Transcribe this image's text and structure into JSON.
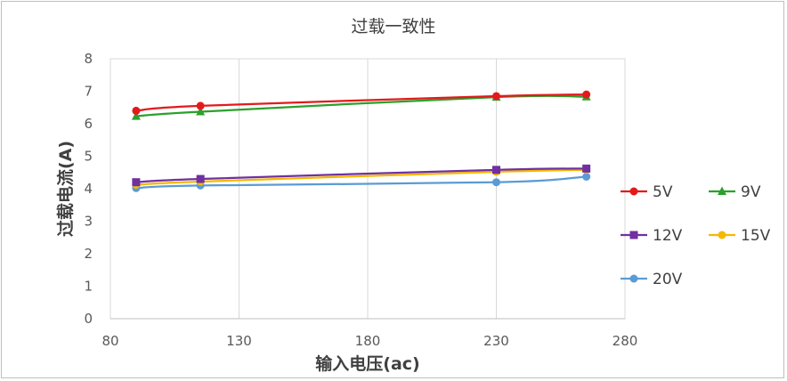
{
  "chart_data": {
    "type": "line",
    "title": "过载一致性",
    "xlabel": "输入电压(ac)",
    "ylabel": "过载电流(A)",
    "xlim": [
      80,
      280
    ],
    "ylim": [
      0,
      8
    ],
    "xticks": [
      80,
      130,
      180,
      230,
      280
    ],
    "yticks": [
      0,
      1,
      2,
      3,
      4,
      5,
      6,
      7,
      8
    ],
    "grid": "vertical",
    "legend_position": "right",
    "series": [
      {
        "name": "5V",
        "color": "#e31a1c",
        "marker": "circle",
        "x": [
          90,
          115,
          230,
          265
        ],
        "values": [
          6.4,
          6.55,
          6.85,
          6.9
        ]
      },
      {
        "name": "9V",
        "color": "#2ca02c",
        "marker": "triangle",
        "x": [
          90,
          115,
          230,
          265
        ],
        "values": [
          6.23,
          6.37,
          6.82,
          6.83
        ]
      },
      {
        "name": "12V",
        "color": "#7030a0",
        "marker": "square",
        "x": [
          90,
          115,
          230,
          265
        ],
        "values": [
          4.2,
          4.3,
          4.58,
          4.62
        ]
      },
      {
        "name": "15V",
        "color": "#f5b800",
        "marker": "circle",
        "x": [
          90,
          115,
          230,
          265
        ],
        "values": [
          4.12,
          4.22,
          4.52,
          4.58
        ]
      },
      {
        "name": "20V",
        "color": "#5b9bd5",
        "marker": "circle",
        "x": [
          90,
          115,
          230,
          265
        ],
        "values": [
          4.02,
          4.1,
          4.2,
          4.37
        ]
      }
    ]
  }
}
